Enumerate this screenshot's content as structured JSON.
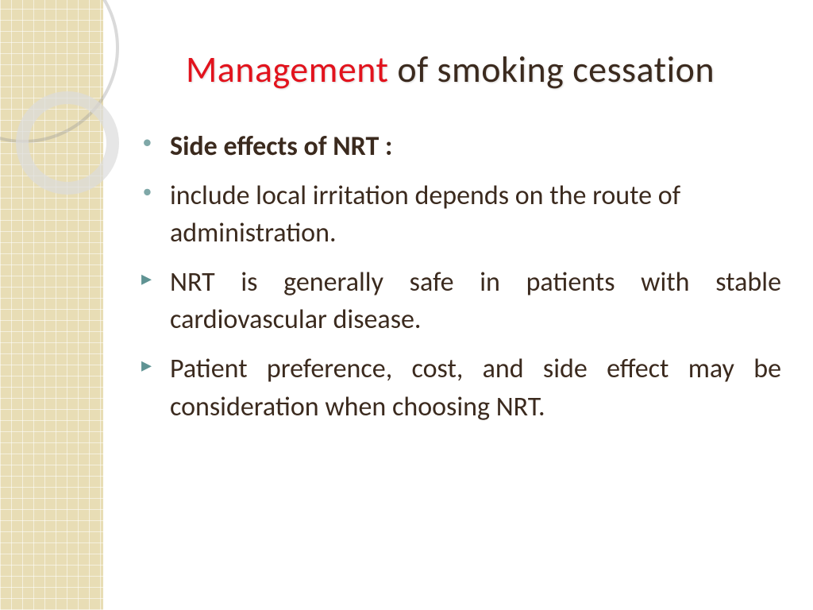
{
  "title": {
    "highlight": "Management",
    "rest": " of smoking cessation",
    "highlight_color": "#e2131d",
    "rest_color": "#3b2a1e",
    "fontsize": 46
  },
  "bullets": [
    {
      "text": "Side effects of NRT :",
      "bold": true,
      "marker": "circle",
      "justify": false
    },
    {
      "text": "include local irritation depends on the route of administration.",
      "bold": false,
      "marker": "circle",
      "justify": false
    },
    {
      "text": "NRT is generally safe in patients with stable cardiovascular disease.",
      "bold": false,
      "marker": "arrow",
      "justify": true
    },
    {
      "text": "Patient preference, cost, and side effect may be consideration when choosing NRT.",
      "bold": false,
      "marker": "arrow",
      "justify": true
    }
  ],
  "styling": {
    "body_fontsize": 34,
    "body_color": "#3b2a1e",
    "circle_bullet_color": "#7fa8a8",
    "arrow_bullet_color": "#5f9393",
    "sidebar_color": "#e8ddb5",
    "background_color": "#ffffff"
  }
}
